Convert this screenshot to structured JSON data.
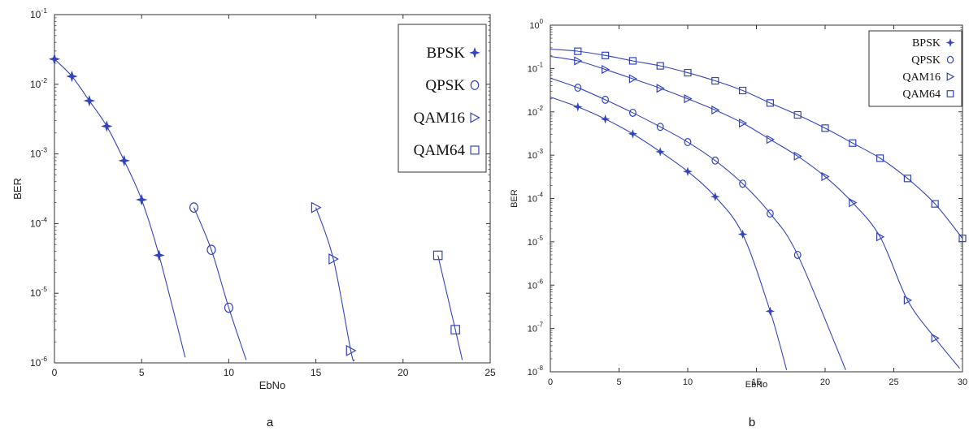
{
  "chart_data": [
    {
      "type": "line",
      "panel_label": "a",
      "xlabel": "EbNo",
      "ylabel": "BER",
      "xlim": [
        0,
        25
      ],
      "ylim": [
        1e-06,
        0.1
      ],
      "yscale": "log",
      "xticks": [
        "0",
        "5",
        "10",
        "15",
        "20",
        "25"
      ],
      "yticks": [
        {
          "base": "10",
          "exp": "-1"
        },
        {
          "base": "10",
          "exp": "-2"
        },
        {
          "base": "10",
          "exp": "-3"
        },
        {
          "base": "10",
          "exp": "-4"
        },
        {
          "base": "10",
          "exp": "-5"
        },
        {
          "base": "10",
          "exp": "-6"
        }
      ],
      "grid": false,
      "legend_position": "top-right",
      "color": "#3344bb",
      "series": [
        {
          "name": "BPSK",
          "marker": "star",
          "x": [
            0,
            1,
            2,
            3,
            4,
            5,
            6
          ],
          "y": [
            0.023,
            0.013,
            0.0058,
            0.0025,
            0.0008,
            0.00022,
            3.5e-05
          ],
          "curve_end": [
            7.5,
            1.2e-06
          ]
        },
        {
          "name": "QPSK",
          "marker": "circle",
          "x": [
            8,
            9,
            10
          ],
          "y": [
            0.00017,
            4.2e-05,
            6.2e-06
          ],
          "curve_end": [
            11,
            1.1e-06
          ]
        },
        {
          "name": "QAM16",
          "marker": "triangle-right",
          "x": [
            15,
            16,
            17
          ],
          "y": [
            0.00017,
            3.1e-05,
            1.5e-06
          ],
          "curve_end": [
            17.2,
            1.1e-06
          ]
        },
        {
          "name": "QAM64",
          "marker": "square",
          "x": [
            22,
            23
          ],
          "y": [
            3.5e-05,
            3e-06
          ],
          "curve_end": [
            23.4,
            1.1e-06
          ]
        }
      ]
    },
    {
      "type": "line",
      "panel_label": "b",
      "xlabel": "EbNo",
      "ylabel": "BER",
      "xlim": [
        0,
        30
      ],
      "ylim": [
        1e-08,
        1
      ],
      "yscale": "log",
      "xticks": [
        "0",
        "5",
        "10",
        "15",
        "20",
        "25",
        "30"
      ],
      "yticks": [
        {
          "base": "10",
          "exp": "0"
        },
        {
          "base": "10",
          "exp": "-1"
        },
        {
          "base": "10",
          "exp": "-2"
        },
        {
          "base": "10",
          "exp": "-3"
        },
        {
          "base": "10",
          "exp": "-4"
        },
        {
          "base": "10",
          "exp": "-5"
        },
        {
          "base": "10",
          "exp": "-6"
        },
        {
          "base": "10",
          "exp": "-7"
        },
        {
          "base": "10",
          "exp": "-8"
        }
      ],
      "grid": false,
      "legend_position": "top-right",
      "color": "#3344bb",
      "series": [
        {
          "name": "BPSK",
          "marker": "star",
          "x": [
            2,
            4,
            6,
            8,
            10,
            12,
            14,
            16
          ],
          "y": [
            0.013,
            0.0068,
            0.0031,
            0.0012,
            0.00042,
            0.00011,
            1.5e-05,
            2.5e-07
          ],
          "curve_start": [
            0,
            0.022
          ],
          "curve_end": [
            17.2,
            1.1e-08
          ]
        },
        {
          "name": "QPSK",
          "marker": "circle",
          "x": [
            2,
            4,
            6,
            8,
            10,
            12,
            14,
            16,
            18
          ],
          "y": [
            0.036,
            0.019,
            0.0095,
            0.0045,
            0.002,
            0.00075,
            0.00022,
            4.5e-05,
            5e-06
          ],
          "curve_start": [
            0,
            0.06
          ],
          "curve_end": [
            21.5,
            1.1e-08
          ]
        },
        {
          "name": "QAM16",
          "marker": "triangle-right",
          "x": [
            2,
            4,
            6,
            8,
            10,
            12,
            14,
            16,
            18,
            20,
            22,
            24,
            26,
            28
          ],
          "y": [
            0.15,
            0.095,
            0.058,
            0.035,
            0.02,
            0.011,
            0.0055,
            0.0023,
            0.00095,
            0.00032,
            8e-05,
            1.3e-05,
            4.5e-07,
            6e-08
          ],
          "curve_start": [
            0,
            0.19
          ],
          "curve_end": [
            29.8,
            1.2e-08
          ]
        },
        {
          "name": "QAM64",
          "marker": "square",
          "x": [
            2,
            4,
            6,
            8,
            10,
            12,
            14,
            16,
            18,
            20,
            22,
            24,
            26,
            28,
            30
          ],
          "y": [
            0.25,
            0.2,
            0.15,
            0.115,
            0.08,
            0.052,
            0.031,
            0.016,
            0.0085,
            0.0042,
            0.0019,
            0.00085,
            0.00029,
            7.5e-05,
            1.2e-05
          ],
          "curve_start": [
            0,
            0.28
          ],
          "curve_end": [
            30,
            1.2e-05
          ]
        }
      ]
    }
  ]
}
